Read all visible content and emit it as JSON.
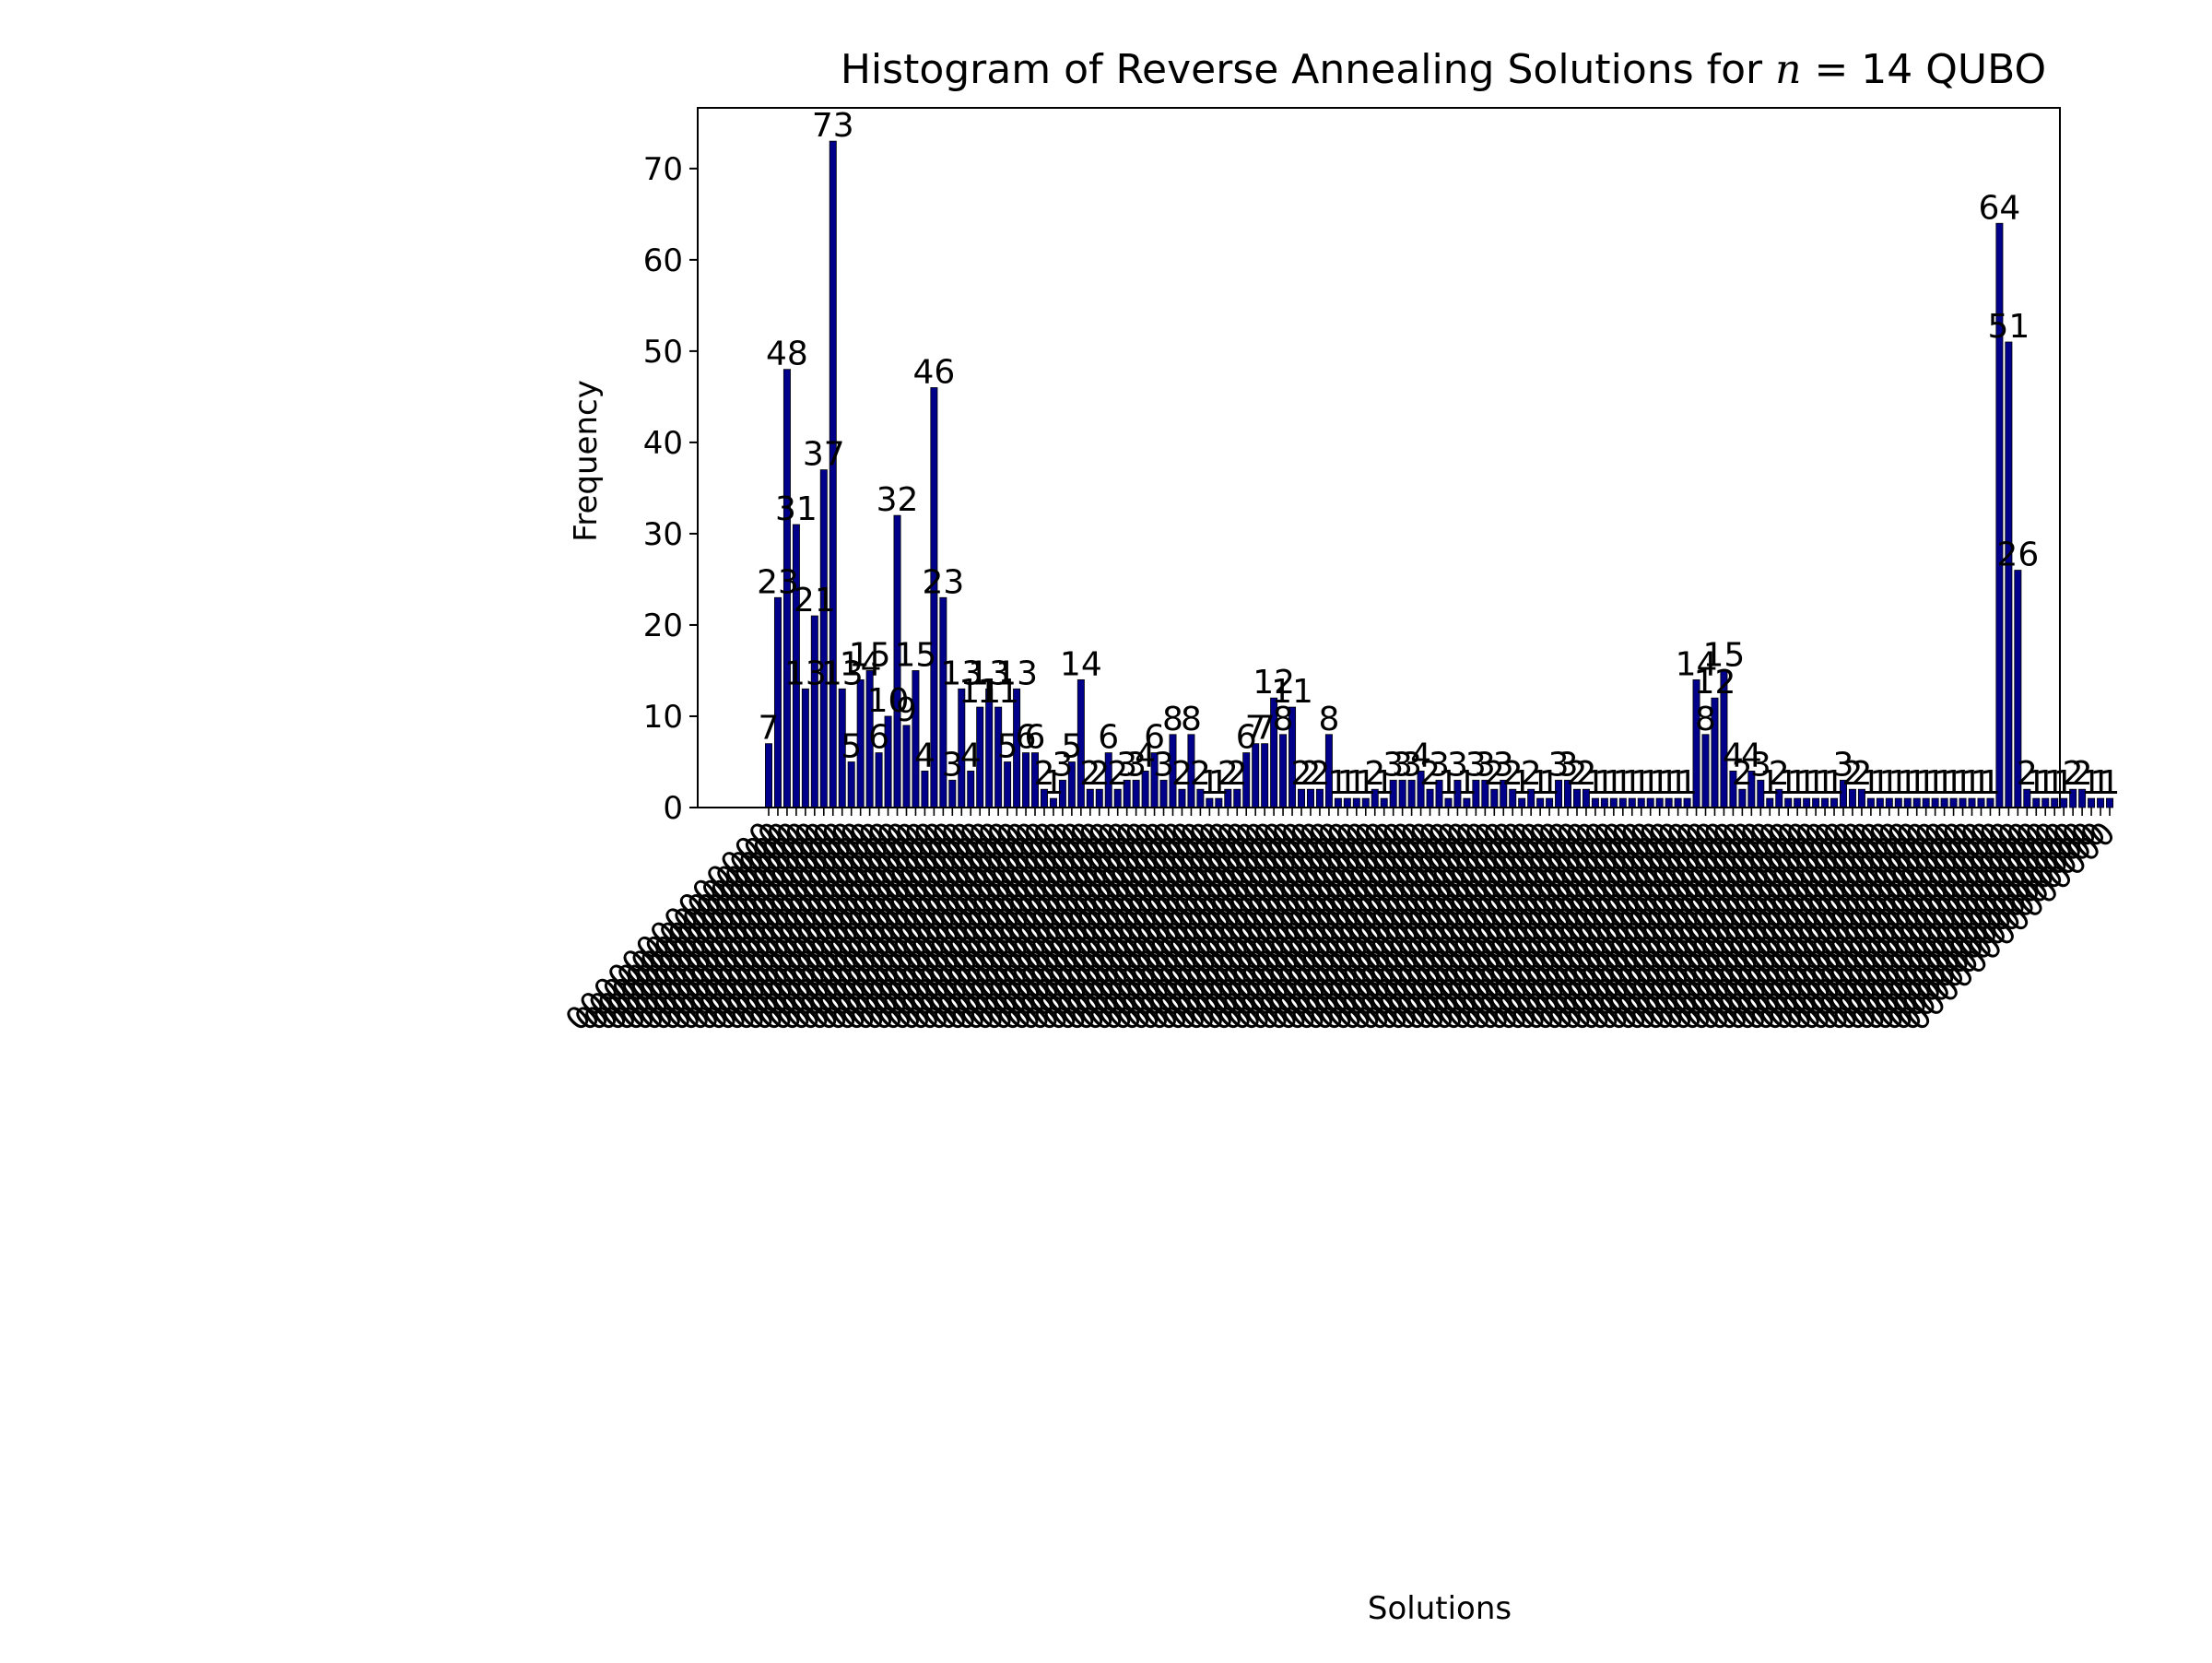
{
  "chart_data": {
    "type": "bar",
    "title": "Histogram of Reverse Annealing Solutions for n = 14 QUBO",
    "title_prefix": "Histogram of Reverse Annealing Solutions for ",
    "title_math_var": "n",
    "title_math_rest": " = 14 QUBO",
    "xlabel": "Solutions",
    "ylabel": "Frequency",
    "ylim": [
      0,
      76.65
    ],
    "yticks": [
      0,
      10,
      20,
      30,
      40,
      50,
      60,
      70
    ],
    "grid": false,
    "bar_color": "#00008b",
    "tick_label_placeholder": "00000000000000",
    "values": [
      7,
      23,
      48,
      31,
      13,
      21,
      37,
      73,
      13,
      5,
      14,
      15,
      6,
      10,
      32,
      9,
      15,
      4,
      46,
      23,
      3,
      13,
      4,
      11,
      13,
      11,
      5,
      13,
      6,
      6,
      2,
      1,
      3,
      5,
      14,
      2,
      2,
      6,
      2,
      3,
      3,
      4,
      6,
      3,
      8,
      2,
      8,
      2,
      1,
      1,
      2,
      2,
      6,
      7,
      7,
      12,
      8,
      11,
      2,
      2,
      2,
      8,
      1,
      1,
      1,
      1,
      2,
      1,
      3,
      3,
      3,
      4,
      2,
      3,
      1,
      3,
      1,
      3,
      3,
      2,
      3,
      2,
      1,
      2,
      1,
      1,
      3,
      3,
      2,
      2,
      1,
      1,
      1,
      1,
      1,
      1,
      1,
      1,
      1,
      1,
      1,
      14,
      8,
      12,
      15,
      4,
      2,
      4,
      3,
      1,
      2,
      1,
      1,
      1,
      1,
      1,
      1,
      3,
      2,
      2,
      1,
      1,
      1,
      1,
      1,
      1,
      1,
      1,
      1,
      1,
      1,
      1,
      1,
      1,
      64,
      51,
      26,
      2,
      1,
      1,
      1,
      1,
      2,
      2,
      1,
      1,
      1
    ]
  }
}
